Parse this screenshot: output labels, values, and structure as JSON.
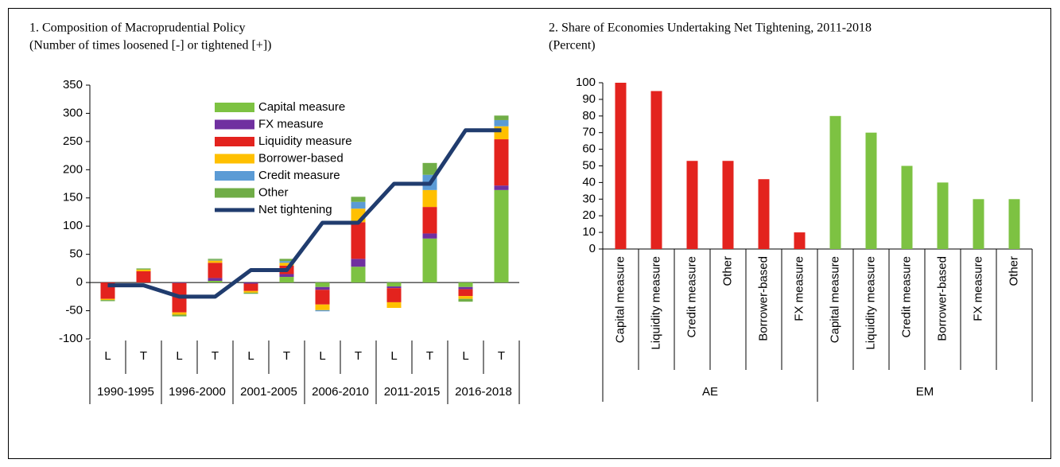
{
  "chart_data": [
    {
      "type": "bar",
      "stacked": true,
      "title": "1. Composition of Macroprudential Policy",
      "subtitle": "(Number of times loosened [-] or tightened [+])",
      "categories": [
        "L",
        "T",
        "L",
        "T",
        "L",
        "T",
        "L",
        "T",
        "L",
        "T",
        "L",
        "T"
      ],
      "periods": [
        "1990-1995",
        "1996-2000",
        "2001-2005",
        "2006-2010",
        "2011-2015",
        "2016-2018"
      ],
      "ylim": [
        -100,
        350
      ],
      "yticks": [
        -100,
        -50,
        0,
        50,
        100,
        150,
        200,
        250,
        300,
        350
      ],
      "series": [
        {
          "name": "Capital measure",
          "color": "#7dc242",
          "values": [
            0,
            0,
            0,
            3,
            0,
            10,
            -8,
            28,
            -7,
            78,
            -8,
            164
          ]
        },
        {
          "name": "FX measure",
          "color": "#7030a0",
          "values": [
            0,
            0,
            -1,
            5,
            -2,
            5,
            -5,
            14,
            -3,
            9,
            -4,
            8
          ]
        },
        {
          "name": "Liquidity measure",
          "color": "#e3231e",
          "values": [
            -29,
            20,
            -52,
            27,
            -13,
            15,
            -26,
            65,
            -25,
            47,
            -12,
            82
          ]
        },
        {
          "name": "Borrower-based",
          "color": "#ffc000",
          "values": [
            -2,
            3,
            -4,
            4,
            -3,
            5,
            -10,
            24,
            -10,
            30,
            -5,
            23
          ]
        },
        {
          "name": "Credit measure",
          "color": "#5b9bd5",
          "values": [
            0,
            0,
            0,
            1,
            0,
            3,
            -2,
            12,
            0,
            27,
            0,
            11
          ]
        },
        {
          "name": "Other",
          "color": "#70ad47",
          "values": [
            -2,
            2,
            -3,
            2,
            -2,
            4,
            0,
            9,
            0,
            21,
            -5,
            8
          ]
        },
        {
          "name": "Net tightening",
          "color": "#203c6e",
          "type": "line",
          "values": [
            -5,
            -5,
            -25,
            -25,
            22,
            22,
            106,
            106,
            175,
            175,
            270,
            270
          ]
        }
      ]
    },
    {
      "type": "bar",
      "title": "2. Share of Economies Undertaking Net Tightening, 2011-2018",
      "subtitle": "(Percent)",
      "categories": [
        "Capital measure",
        "Liquidity measure",
        "Credit measure",
        "Other",
        "Borrower-based",
        "FX measure",
        "Capital measure",
        "Liquidity measure",
        "Credit measure",
        "Borrower-based",
        "FX measure",
        "Other"
      ],
      "ylim": [
        0,
        100
      ],
      "yticks": [
        0,
        10,
        20,
        30,
        40,
        50,
        60,
        70,
        80,
        90,
        100
      ],
      "series": [
        {
          "name": "AE",
          "color": "#e3231e",
          "values": [
            100,
            95,
            53,
            53,
            42,
            10,
            null,
            null,
            null,
            null,
            null,
            null
          ]
        },
        {
          "name": "EM",
          "color": "#7dc242",
          "values": [
            null,
            null,
            null,
            null,
            null,
            null,
            80,
            70,
            50,
            40,
            30,
            30
          ]
        }
      ]
    }
  ]
}
